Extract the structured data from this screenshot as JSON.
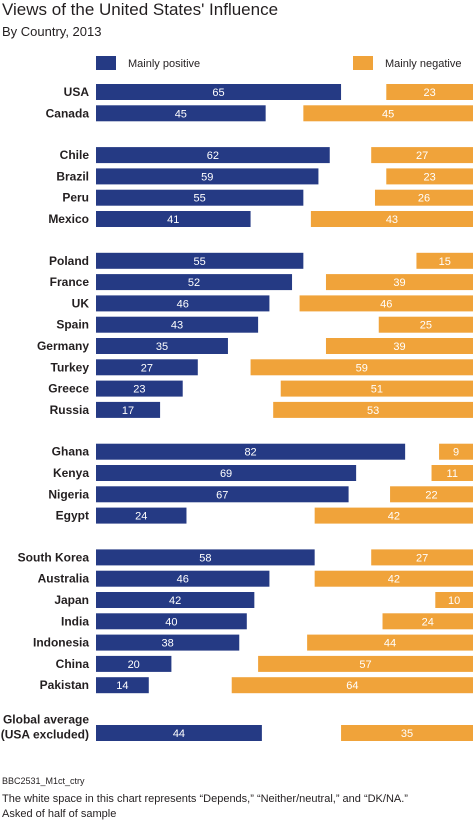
{
  "chart_data": {
    "type": "bar",
    "title": "Views of the United States' Influence",
    "subtitle": "By Country, 2013",
    "legend": {
      "positive": "Mainly positive",
      "negative": "Mainly negative",
      "placement": "top"
    },
    "colors": {
      "positive": "#253a84",
      "negative": "#f0a33a"
    },
    "groups": [
      [
        {
          "label": [
            "USA"
          ],
          "positive": 65,
          "negative": 23
        },
        {
          "label": [
            "Canada"
          ],
          "positive": 45,
          "negative": 45
        }
      ],
      [
        {
          "label": [
            "Chile"
          ],
          "positive": 62,
          "negative": 27
        },
        {
          "label": [
            "Brazil"
          ],
          "positive": 59,
          "negative": 23
        },
        {
          "label": [
            "Peru"
          ],
          "positive": 55,
          "negative": 26
        },
        {
          "label": [
            "Mexico"
          ],
          "positive": 41,
          "negative": 43
        }
      ],
      [
        {
          "label": [
            "Poland"
          ],
          "positive": 55,
          "negative": 15
        },
        {
          "label": [
            "France"
          ],
          "positive": 52,
          "negative": 39
        },
        {
          "label": [
            "UK"
          ],
          "positive": 46,
          "negative": 46
        },
        {
          "label": [
            "Spain"
          ],
          "positive": 43,
          "negative": 25
        },
        {
          "label": [
            "Germany"
          ],
          "positive": 35,
          "negative": 39
        },
        {
          "label": [
            "Turkey"
          ],
          "positive": 27,
          "negative": 59
        },
        {
          "label": [
            "Greece"
          ],
          "positive": 23,
          "negative": 51
        },
        {
          "label": [
            "Russia"
          ],
          "positive": 17,
          "negative": 53
        }
      ],
      [
        {
          "label": [
            "Ghana"
          ],
          "positive": 82,
          "negative": 9
        },
        {
          "label": [
            "Kenya"
          ],
          "positive": 69,
          "negative": 11
        },
        {
          "label": [
            "Nigeria"
          ],
          "positive": 67,
          "negative": 22
        },
        {
          "label": [
            "Egypt"
          ],
          "positive": 24,
          "negative": 42
        }
      ],
      [
        {
          "label": [
            "South Korea"
          ],
          "positive": 58,
          "negative": 27
        },
        {
          "label": [
            "Australia"
          ],
          "positive": 46,
          "negative": 42
        },
        {
          "label": [
            "Japan"
          ],
          "positive": 42,
          "negative": 10
        },
        {
          "label": [
            "India"
          ],
          "positive": 40,
          "negative": 24
        },
        {
          "label": [
            "Indonesia"
          ],
          "positive": 38,
          "negative": 44
        },
        {
          "label": [
            "China"
          ],
          "positive": 20,
          "negative": 57
        },
        {
          "label": [
            "Pakistan"
          ],
          "positive": 14,
          "negative": 64
        }
      ],
      [
        {
          "label": [
            "Global average",
            "(USA excluded)"
          ],
          "positive": 44,
          "negative": 35
        }
      ]
    ]
  },
  "footer": {
    "code": "BBC2531_M1ct_ctry",
    "note": "The white space in this chart represents “Depends,” “Neither/neutral,” and “DK/NA.”",
    "sample": "Asked of half of sample"
  }
}
